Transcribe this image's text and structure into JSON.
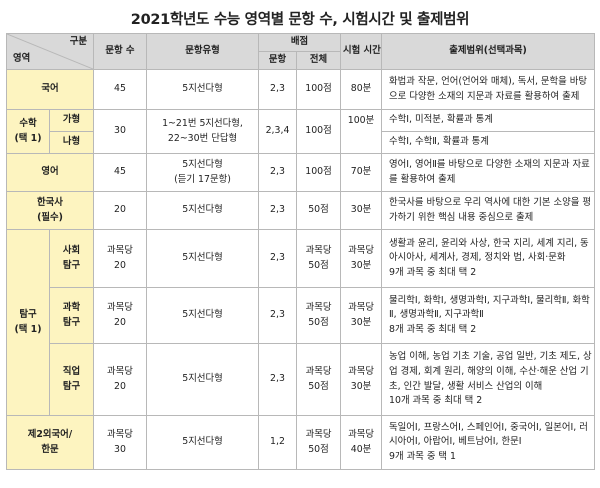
{
  "title": "2021학년도 수능 영역별 문항 수, 시험시간 및 출제범위",
  "header": {
    "gubun": "구분",
    "area": "영역",
    "count": "문항 수",
    "type": "문항유형",
    "score": "배점",
    "score_item": "문항",
    "score_total": "전체",
    "time": "시험 시간",
    "scope": "출제범위(선택과목)"
  },
  "rows": {
    "korean": {
      "area": "국어",
      "count": "45",
      "type": "5지선다형",
      "item": "2,3",
      "total": "100점",
      "time": "80분",
      "scope": "화법과 작문, 언어(언어와 매체), 독서, 문학을 바탕으로 다양한 소재의 지문과 자료를 활용하여 출제"
    },
    "math": {
      "area1": "수학",
      "area2": "(택 1)",
      "ga": "가형",
      "na": "나형",
      "count": "30",
      "type1": "1~21번 5지선다형,",
      "type2": "22~30번 단답형",
      "item": "2,3,4",
      "total": "100점",
      "time": "100분",
      "scope_ga": "수학Ⅰ, 미적분, 확률과 통계",
      "scope_na": "수학Ⅰ, 수학Ⅱ, 확률과 통계"
    },
    "english": {
      "area": "영어",
      "count": "45",
      "type1": "5지선다형",
      "type2": "(듣기 17문항)",
      "item": "2,3",
      "total": "100점",
      "time": "70분",
      "scope": "영어Ⅰ, 영어Ⅱ를 바탕으로 다양한 소재의 지문과 자료를 활용하여 출제"
    },
    "history": {
      "area1": "한국사",
      "area2": "(필수)",
      "count": "20",
      "type": "5지선다형",
      "item": "2,3",
      "total": "50점",
      "time": "30분",
      "scope": "한국사를 바탕으로 우리 역사에 대한 기본 소양을 평가하기 위한 핵심 내용 중심으로 출제"
    },
    "inquiry": {
      "area1": "탐구",
      "area2": "(택 1)",
      "social": {
        "name1": "사회",
        "name2": "탐구",
        "count1": "과목당",
        "count2": "20",
        "type": "5지선다형",
        "item": "2,3",
        "total1": "과목당",
        "total2": "50점",
        "time1": "과목당",
        "time2": "30분",
        "scope": "생활과 윤리, 윤리와 사상, 한국 지리, 세계 지리, 동아시아사, 세계사, 경제, 정치와 법, 사회·문화",
        "note": "9개 과목 중 최대 택 2"
      },
      "science": {
        "name1": "과학",
        "name2": "탐구",
        "count1": "과목당",
        "count2": "20",
        "type": "5지선다형",
        "item": "2,3",
        "total1": "과목당",
        "total2": "50점",
        "time1": "과목당",
        "time2": "30분",
        "scope": "물리학Ⅰ, 화학Ⅰ, 생명과학Ⅰ, 지구과학Ⅰ, 물리학Ⅱ, 화학Ⅱ, 생명과학Ⅱ, 지구과학Ⅱ",
        "note": "8개 과목 중 최대 택 2"
      },
      "vocational": {
        "name1": "직업",
        "name2": "탐구",
        "count1": "과목당",
        "count2": "20",
        "type": "5지선다형",
        "item": "2,3",
        "total1": "과목당",
        "total2": "50점",
        "time1": "과목당",
        "time2": "30분",
        "scope": "농업 이해, 농업 기초 기술, 공업 일반, 기초 제도, 상업 경제, 회계 원리, 해양의 이해, 수산·해운 산업 기초, 인간 발달, 생활 서비스 산업의 이해",
        "note": "10개 과목 중 최대 택 2"
      }
    },
    "second_lang": {
      "area1": "제2외국어/",
      "area2": "한문",
      "count1": "과목당",
      "count2": "30",
      "type": "5지선다형",
      "item": "1,2",
      "total1": "과목당",
      "total2": "50점",
      "time1": "과목당",
      "time2": "40분",
      "scope": "독일어Ⅰ, 프랑스어Ⅰ, 스페인어Ⅰ, 중국어Ⅰ, 일본어Ⅰ, 러시아어Ⅰ, 아랍어Ⅰ, 베트남어Ⅰ, 한문Ⅰ",
      "note": "9개 과목 중 택 1"
    }
  },
  "colors": {
    "header_bg": "#d9d9d9",
    "subject_bg": "#fdf4c0",
    "border": "#b8b8b8"
  }
}
